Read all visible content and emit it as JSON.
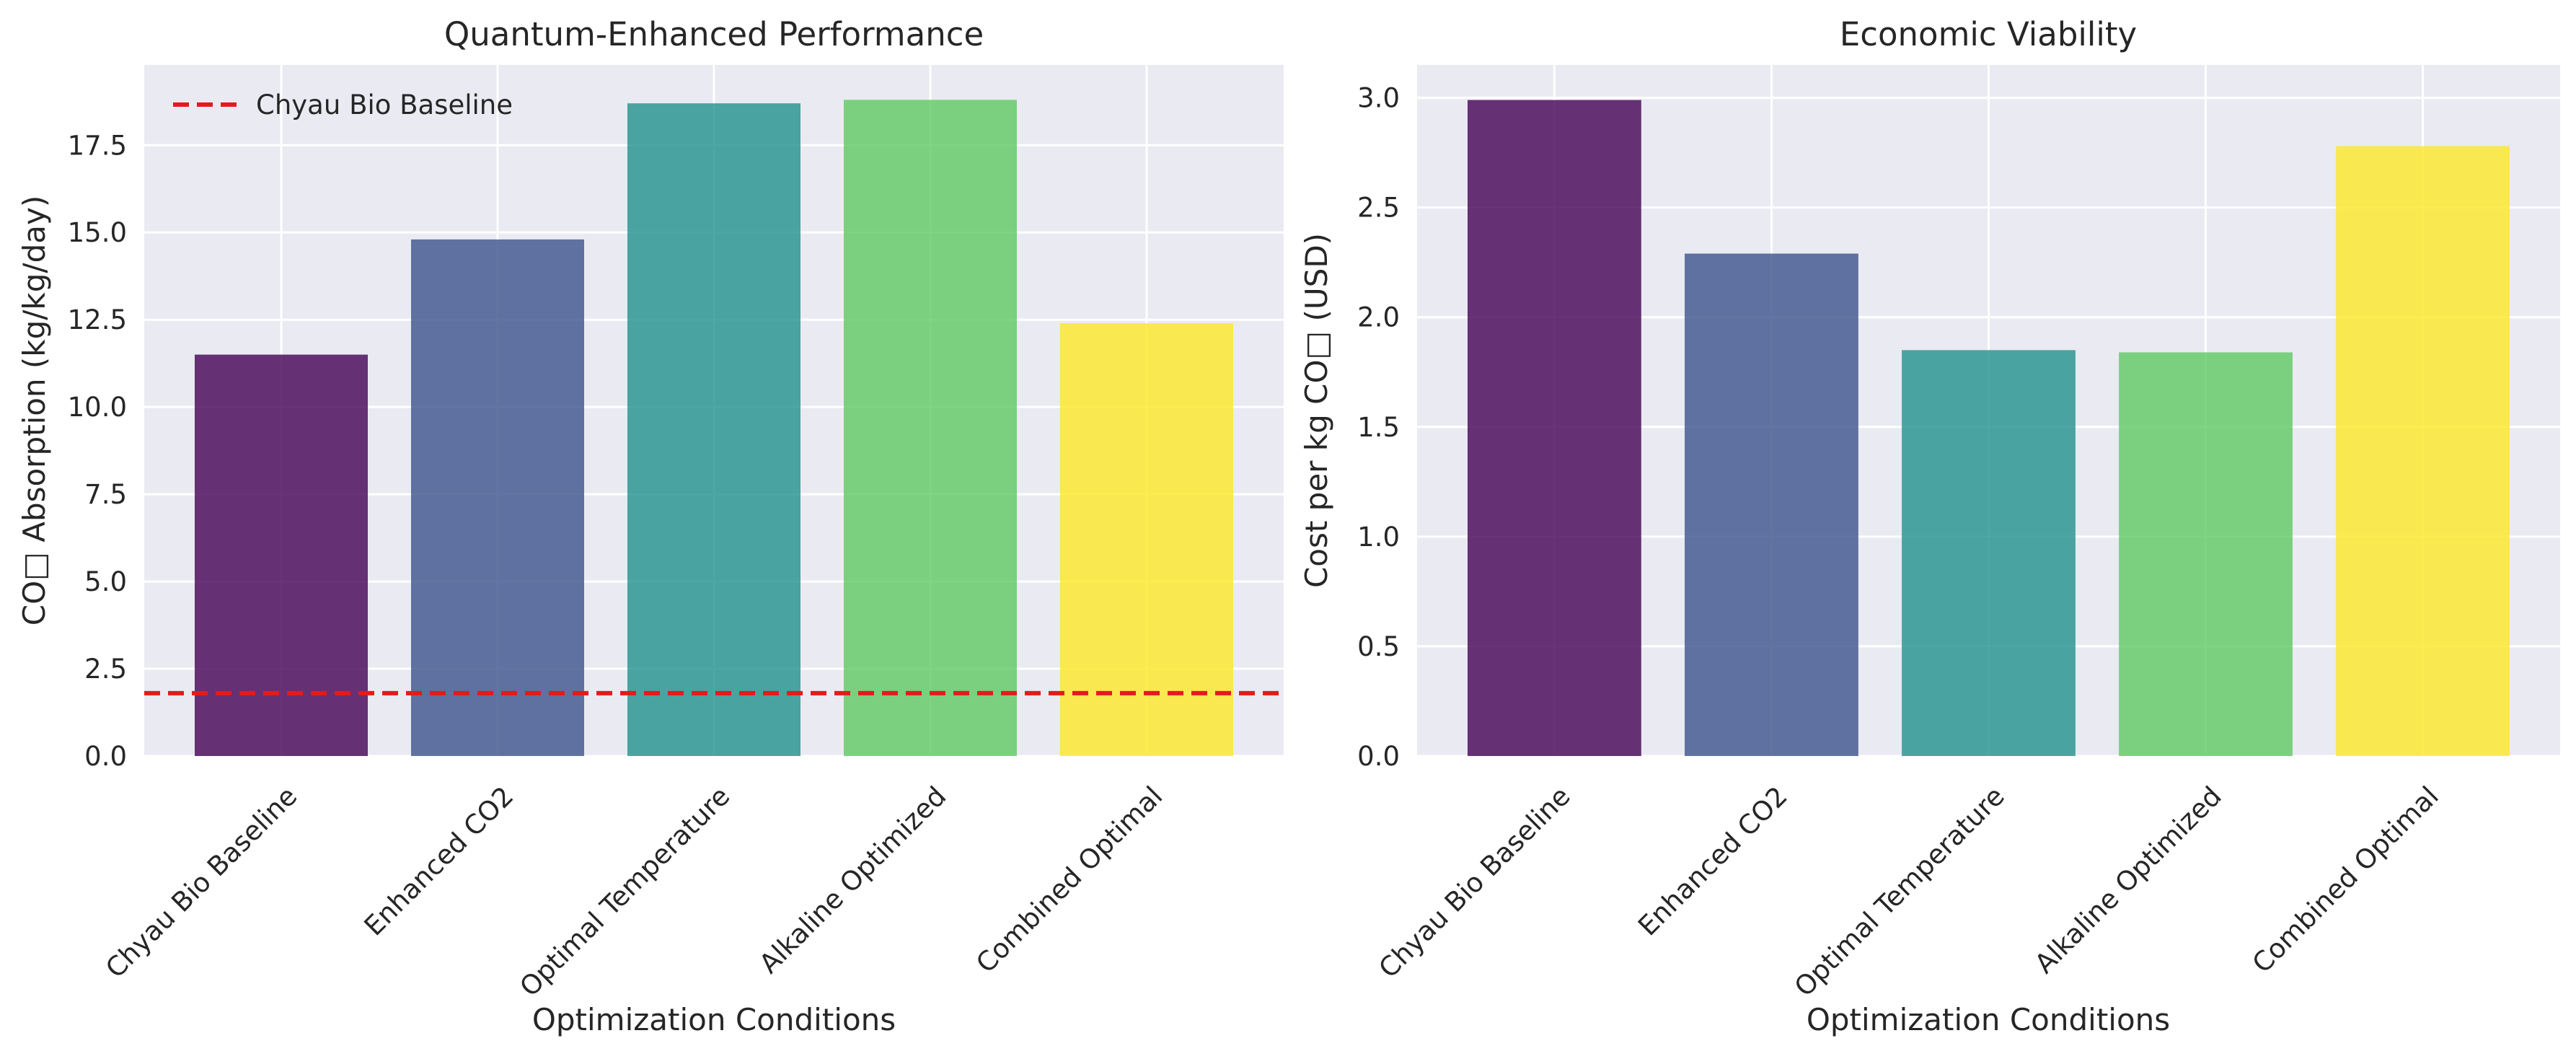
{
  "chart_data": [
    {
      "type": "bar",
      "title": "Quantum-Enhanced Performance",
      "xlabel": "Optimization Conditions",
      "ylabel": "CO□ Absorption (kg/kg/day)",
      "categories": [
        "Chyau Bio Baseline",
        "Enhanced CO2",
        "Optimal Temperature",
        "Alkaline Optimized",
        "Combined Optimal"
      ],
      "values": [
        11.5,
        14.8,
        18.7,
        18.8,
        12.4
      ],
      "colors": [
        "#440154",
        "#3b528b",
        "#21918c",
        "#5ec962",
        "#fde725"
      ],
      "ylim": [
        0,
        19.8
      ],
      "yticks": [
        "0.0",
        "2.5",
        "5.0",
        "7.5",
        "10.0",
        "12.5",
        "15.0",
        "17.5"
      ],
      "baseline": {
        "label": "Chyau Bio Baseline",
        "value": 1.8,
        "color": "#e41a1c"
      },
      "legend_position": "upper-left",
      "grid": true
    },
    {
      "type": "bar",
      "title": "Economic Viability",
      "xlabel": "Optimization Conditions",
      "ylabel": "Cost per kg CO□ (USD)",
      "categories": [
        "Chyau Bio Baseline",
        "Enhanced CO2",
        "Optimal Temperature",
        "Alkaline Optimized",
        "Combined Optimal"
      ],
      "values": [
        2.99,
        2.29,
        1.85,
        1.84,
        2.78
      ],
      "colors": [
        "#440154",
        "#3b528b",
        "#21918c",
        "#5ec962",
        "#fde725"
      ],
      "ylim": [
        0,
        3.15
      ],
      "yticks": [
        "0.0",
        "0.5",
        "1.0",
        "1.5",
        "2.0",
        "2.5",
        "3.0"
      ],
      "grid": true
    }
  ]
}
